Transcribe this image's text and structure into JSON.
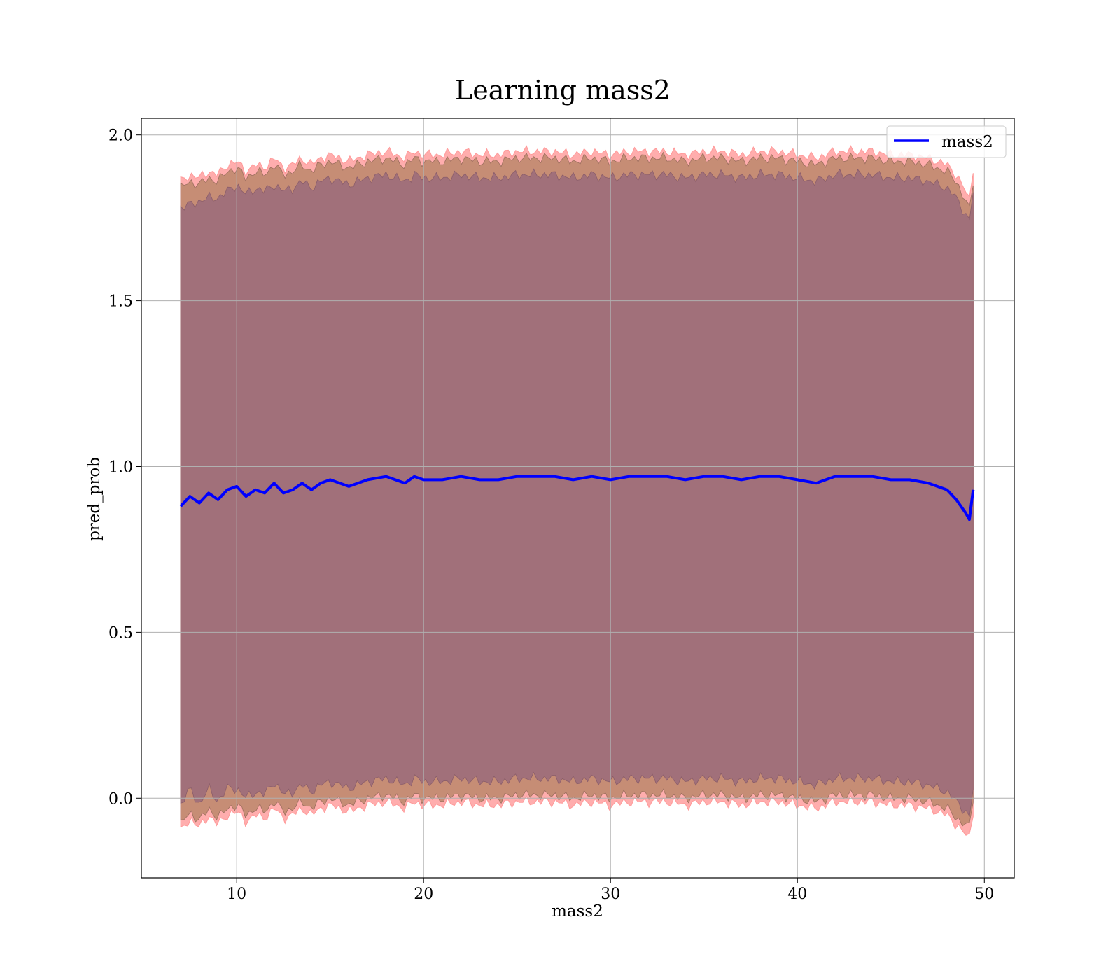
{
  "chart_data": {
    "type": "line",
    "title": "Learning mass2",
    "xlabel": "mass2",
    "ylabel": "pred_prob",
    "xlim": [
      4.9,
      51.6
    ],
    "ylim": [
      -0.24,
      2.05
    ],
    "xticks": [
      10,
      20,
      30,
      40,
      50
    ],
    "yticks": [
      0.0,
      0.5,
      1.0,
      1.5,
      2.0
    ],
    "xtick_labels": [
      "10",
      "20",
      "30",
      "40",
      "50"
    ],
    "ytick_labels": [
      "0.0",
      "0.5",
      "1.0",
      "1.5",
      "2.0"
    ],
    "grid": true,
    "legend": {
      "position": "top-right",
      "entries": [
        "mass2"
      ]
    },
    "colors": {
      "line": "#0000ff",
      "band_outer": "#ff9999",
      "band_middle": "#c08a6f",
      "band_inner": "#a1707a",
      "grid": "#b0b0b0"
    },
    "series": [
      {
        "name": "mass2",
        "x": [
          7.0,
          7.5,
          8.0,
          8.5,
          9.0,
          9.5,
          10.0,
          10.5,
          11.0,
          11.5,
          12.0,
          12.5,
          13.0,
          13.5,
          14.0,
          14.5,
          15.0,
          16.0,
          17.0,
          18.0,
          19.0,
          19.5,
          20.0,
          21.0,
          22.0,
          23.0,
          24.0,
          25.0,
          26.0,
          27.0,
          28.0,
          29.0,
          30.0,
          31.0,
          32.0,
          33.0,
          34.0,
          35.0,
          36.0,
          37.0,
          38.0,
          39.0,
          40.0,
          41.0,
          42.0,
          43.0,
          44.0,
          45.0,
          46.0,
          47.0,
          48.0,
          48.5,
          49.0,
          49.2,
          49.4
        ],
        "y": [
          0.88,
          0.91,
          0.89,
          0.92,
          0.9,
          0.93,
          0.94,
          0.91,
          0.93,
          0.92,
          0.95,
          0.92,
          0.93,
          0.95,
          0.93,
          0.95,
          0.96,
          0.94,
          0.96,
          0.97,
          0.95,
          0.97,
          0.96,
          0.96,
          0.97,
          0.96,
          0.96,
          0.97,
          0.97,
          0.97,
          0.96,
          0.97,
          0.96,
          0.97,
          0.97,
          0.97,
          0.96,
          0.97,
          0.97,
          0.96,
          0.97,
          0.97,
          0.96,
          0.95,
          0.97,
          0.97,
          0.97,
          0.96,
          0.96,
          0.95,
          0.93,
          0.9,
          0.86,
          0.84,
          0.93
        ],
        "std_inner": [
          0.9,
          0.88,
          0.91,
          0.89,
          0.91,
          0.9,
          0.91,
          0.91,
          0.91,
          0.91,
          0.9,
          0.91,
          0.91,
          0.91,
          0.91,
          0.91,
          0.91,
          0.91,
          0.91,
          0.91,
          0.91,
          0.91,
          0.91,
          0.91,
          0.91,
          0.91,
          0.91,
          0.91,
          0.91,
          0.91,
          0.91,
          0.91,
          0.91,
          0.91,
          0.91,
          0.91,
          0.91,
          0.91,
          0.91,
          0.91,
          0.91,
          0.91,
          0.91,
          0.91,
          0.91,
          0.91,
          0.91,
          0.91,
          0.91,
          0.91,
          0.91,
          0.91,
          0.9,
          0.9,
          0.9
        ],
        "std_middle": [
          0.96,
          0.95,
          0.96,
          0.95,
          0.96,
          0.96,
          0.96,
          0.96,
          0.96,
          0.96,
          0.96,
          0.96,
          0.96,
          0.96,
          0.96,
          0.96,
          0.96,
          0.96,
          0.96,
          0.96,
          0.96,
          0.96,
          0.96,
          0.96,
          0.96,
          0.96,
          0.96,
          0.96,
          0.96,
          0.96,
          0.96,
          0.96,
          0.96,
          0.96,
          0.96,
          0.96,
          0.96,
          0.96,
          0.96,
          0.96,
          0.96,
          0.96,
          0.96,
          0.96,
          0.96,
          0.96,
          0.96,
          0.96,
          0.96,
          0.96,
          0.96,
          0.96,
          0.94,
          0.93,
          0.93
        ],
        "std_outer": [
          0.98,
          0.97,
          0.98,
          0.97,
          0.98,
          0.98,
          0.98,
          0.98,
          0.98,
          0.98,
          0.98,
          0.98,
          0.98,
          0.98,
          0.98,
          0.98,
          0.98,
          0.98,
          0.98,
          0.98,
          0.98,
          0.98,
          0.98,
          0.98,
          0.98,
          0.98,
          0.98,
          0.98,
          0.98,
          0.98,
          0.98,
          0.98,
          0.98,
          0.98,
          0.98,
          0.98,
          0.98,
          0.98,
          0.98,
          0.98,
          0.98,
          0.98,
          0.98,
          0.98,
          0.98,
          0.98,
          0.98,
          0.98,
          0.98,
          0.98,
          0.98,
          0.98,
          0.97,
          0.96,
          0.97
        ]
      }
    ]
  }
}
